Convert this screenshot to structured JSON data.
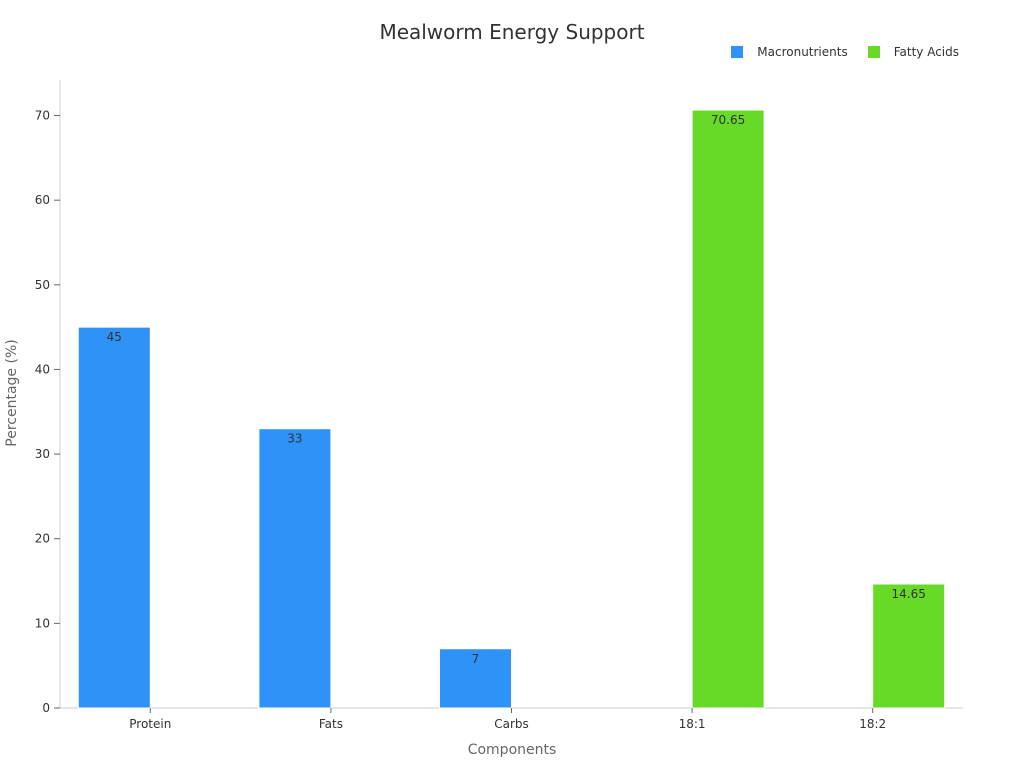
{
  "title": "Mealworm Energy Support",
  "legend": [
    {
      "name": "Macronutrients",
      "color": "#2e92f8"
    },
    {
      "name": "Fatty Acids",
      "color": "#66da26"
    }
  ],
  "chart_data": {
    "type": "bar",
    "title": "Mealworm Energy Support",
    "xlabel": "Components",
    "ylabel": "Percentage (%)",
    "categories": [
      "Protein",
      "Fats",
      "Carbs",
      "18:1",
      "18:2"
    ],
    "series": [
      {
        "name": "Macronutrients",
        "color": "#2e92f8",
        "values": [
          45,
          33,
          7,
          null,
          null
        ]
      },
      {
        "name": "Fatty Acids",
        "color": "#66da26",
        "values": [
          null,
          null,
          null,
          70.65,
          14.65
        ]
      }
    ],
    "ylim": [
      0,
      74.2
    ],
    "yticks": [
      0,
      10,
      20,
      30,
      40,
      50,
      60,
      70
    ],
    "grid": false,
    "legend_position": "top-right"
  }
}
